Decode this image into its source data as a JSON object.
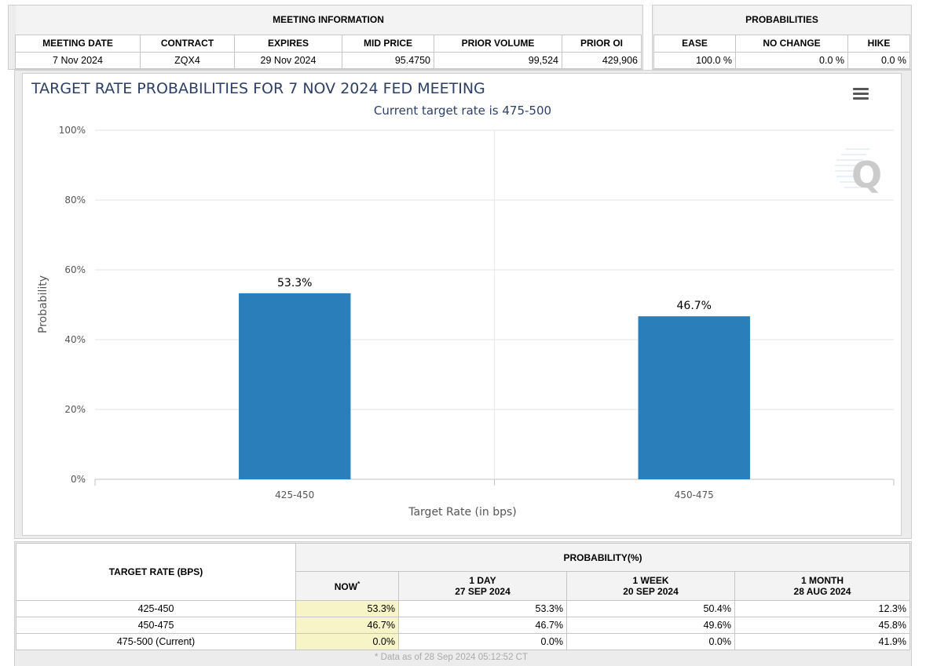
{
  "meeting_info": {
    "title": "MEETING INFORMATION",
    "headers": [
      "MEETING DATE",
      "CONTRACT",
      "EXPIRES",
      "MID PRICE",
      "PRIOR VOLUME",
      "PRIOR OI"
    ],
    "values": [
      "7 Nov 2024",
      "ZQX4",
      "29 Nov 2024",
      "95.4750",
      "99,524",
      "429,906"
    ]
  },
  "probabilities": {
    "title": "PROBABILITIES",
    "headers": [
      "EASE",
      "NO CHANGE",
      "HIKE"
    ],
    "values": [
      "100.0 %",
      "0.0 %",
      "0.0 %"
    ]
  },
  "chart_data": {
    "type": "bar",
    "title": "TARGET RATE PROBABILITIES FOR 7 NOV 2024 FED MEETING",
    "subtitle": "Current target rate is 475-500",
    "categories": [
      "425-450",
      "450-475"
    ],
    "values": [
      53.3,
      46.7
    ],
    "data_labels": [
      "53.3%",
      "46.7%"
    ],
    "xlabel": "Target Rate (in bps)",
    "ylabel": "Probability",
    "ylim": [
      0,
      100
    ],
    "yticks": [
      "0%",
      "20%",
      "40%",
      "60%",
      "80%",
      "100%"
    ],
    "grid": true,
    "bar_color": "#2a7fba"
  },
  "prob_table": {
    "rate_header": "TARGET RATE (BPS)",
    "prob_header": "PROBABILITY(%)",
    "now_header": "NOW",
    "now_marker": "*",
    "col_headers": [
      {
        "line1": "1 DAY",
        "line2": "27 SEP 2024"
      },
      {
        "line1": "1 WEEK",
        "line2": "20 SEP 2024"
      },
      {
        "line1": "1 MONTH",
        "line2": "28 AUG 2024"
      }
    ],
    "rows": [
      {
        "rate": "425-450",
        "now": "53.3%",
        "day": "53.3%",
        "week": "50.4%",
        "month": "12.3%"
      },
      {
        "rate": "450-475",
        "now": "46.7%",
        "day": "46.7%",
        "week": "49.6%",
        "month": "45.8%"
      },
      {
        "rate": "475-500 (Current)",
        "now": "0.0%",
        "day": "0.0%",
        "week": "0.0%",
        "month": "41.9%"
      }
    ],
    "footnote": "* Data as of 28 Sep 2024 05:12:52 CT"
  }
}
